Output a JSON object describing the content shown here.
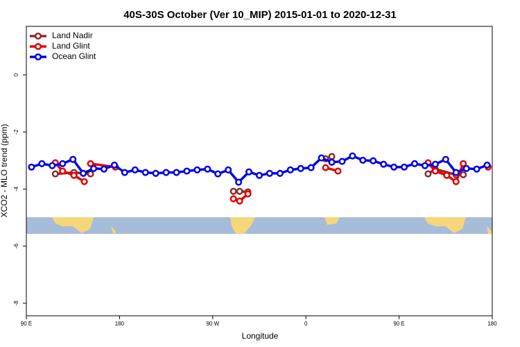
{
  "chart_data": {
    "type": "line",
    "title": "40S-30S October (Ver 10_MIP)   2015-01-01 to 2020-12-31",
    "x_label": "Longitude",
    "y_label": "XCO2 - MLO trend (ppm)",
    "xlim": [
      90,
      540
    ],
    "xticks": [
      {
        "value": 90,
        "label": "90 E"
      },
      {
        "value": 180,
        "label": "180"
      },
      {
        "value": 270,
        "label": "90 W"
      },
      {
        "value": 360,
        "label": "0"
      },
      {
        "value": 450,
        "label": "90 E"
      },
      {
        "value": 540,
        "label": "180"
      }
    ],
    "ylim": [
      -8.44,
      1.7
    ],
    "yticks": [
      0,
      -2,
      -4,
      -6,
      -8
    ],
    "grid": false,
    "legend": "top-left",
    "series": [
      {
        "name": "Land Nadir",
        "color": "#8b2a2a",
        "x": [
          118,
          136,
          152,
          null,
          290,
          296,
          304,
          null,
          379,
          385,
          null,
          478,
          485,
          505,
          512
        ],
        "values": [
          -3.47,
          -3.42,
          -3.47,
          null,
          -4.08,
          -4.08,
          -4.1,
          null,
          -2.94,
          -2.86,
          null,
          -3.47,
          -3.3,
          -3.5,
          -3.5
        ]
      },
      {
        "name": "Land Glint",
        "color": "#e60000",
        "x": [
          118,
          125,
          136,
          146,
          null,
          152,
          176,
          null,
          290,
          296,
          304,
          null,
          379,
          391,
          null,
          478,
          485,
          496,
          505,
          512,
          null,
          536
        ],
        "values": [
          -3.08,
          -3.37,
          -3.52,
          -3.74,
          null,
          -3.11,
          -3.23,
          null,
          -4.34,
          -4.42,
          -4.17,
          null,
          -3.25,
          -3.37,
          null,
          -3.08,
          -3.37,
          -3.52,
          -3.74,
          -3.11,
          null,
          -3.23
        ]
      },
      {
        "name": "Ocean Glint",
        "color": "#0000e6",
        "x": [
          95,
          105,
          115,
          125,
          135,
          145,
          155,
          165,
          175,
          185,
          195,
          205,
          215,
          225,
          235,
          245,
          255,
          265,
          275,
          285,
          295,
          305,
          315,
          325,
          335,
          345,
          355,
          365,
          375,
          385,
          395,
          405,
          415,
          425,
          435,
          445,
          455,
          465,
          475,
          485,
          495,
          505,
          515,
          525,
          535
        ],
        "values": [
          -3.23,
          -3.11,
          -3.18,
          -3.11,
          -2.96,
          -3.45,
          -3.28,
          -3.3,
          -3.16,
          -3.42,
          -3.33,
          -3.42,
          -3.45,
          -3.42,
          -3.42,
          -3.37,
          -3.33,
          -3.3,
          -3.47,
          -3.33,
          -3.76,
          -3.4,
          -3.52,
          -3.45,
          -3.45,
          -3.33,
          -3.28,
          -3.25,
          -2.91,
          -3.06,
          -3.03,
          -2.84,
          -2.99,
          -3.01,
          -3.13,
          -3.23,
          -3.23,
          -3.11,
          -3.18,
          -3.13,
          -2.96,
          -3.42,
          -3.28,
          -3.3,
          -3.16
        ]
      }
    ]
  }
}
